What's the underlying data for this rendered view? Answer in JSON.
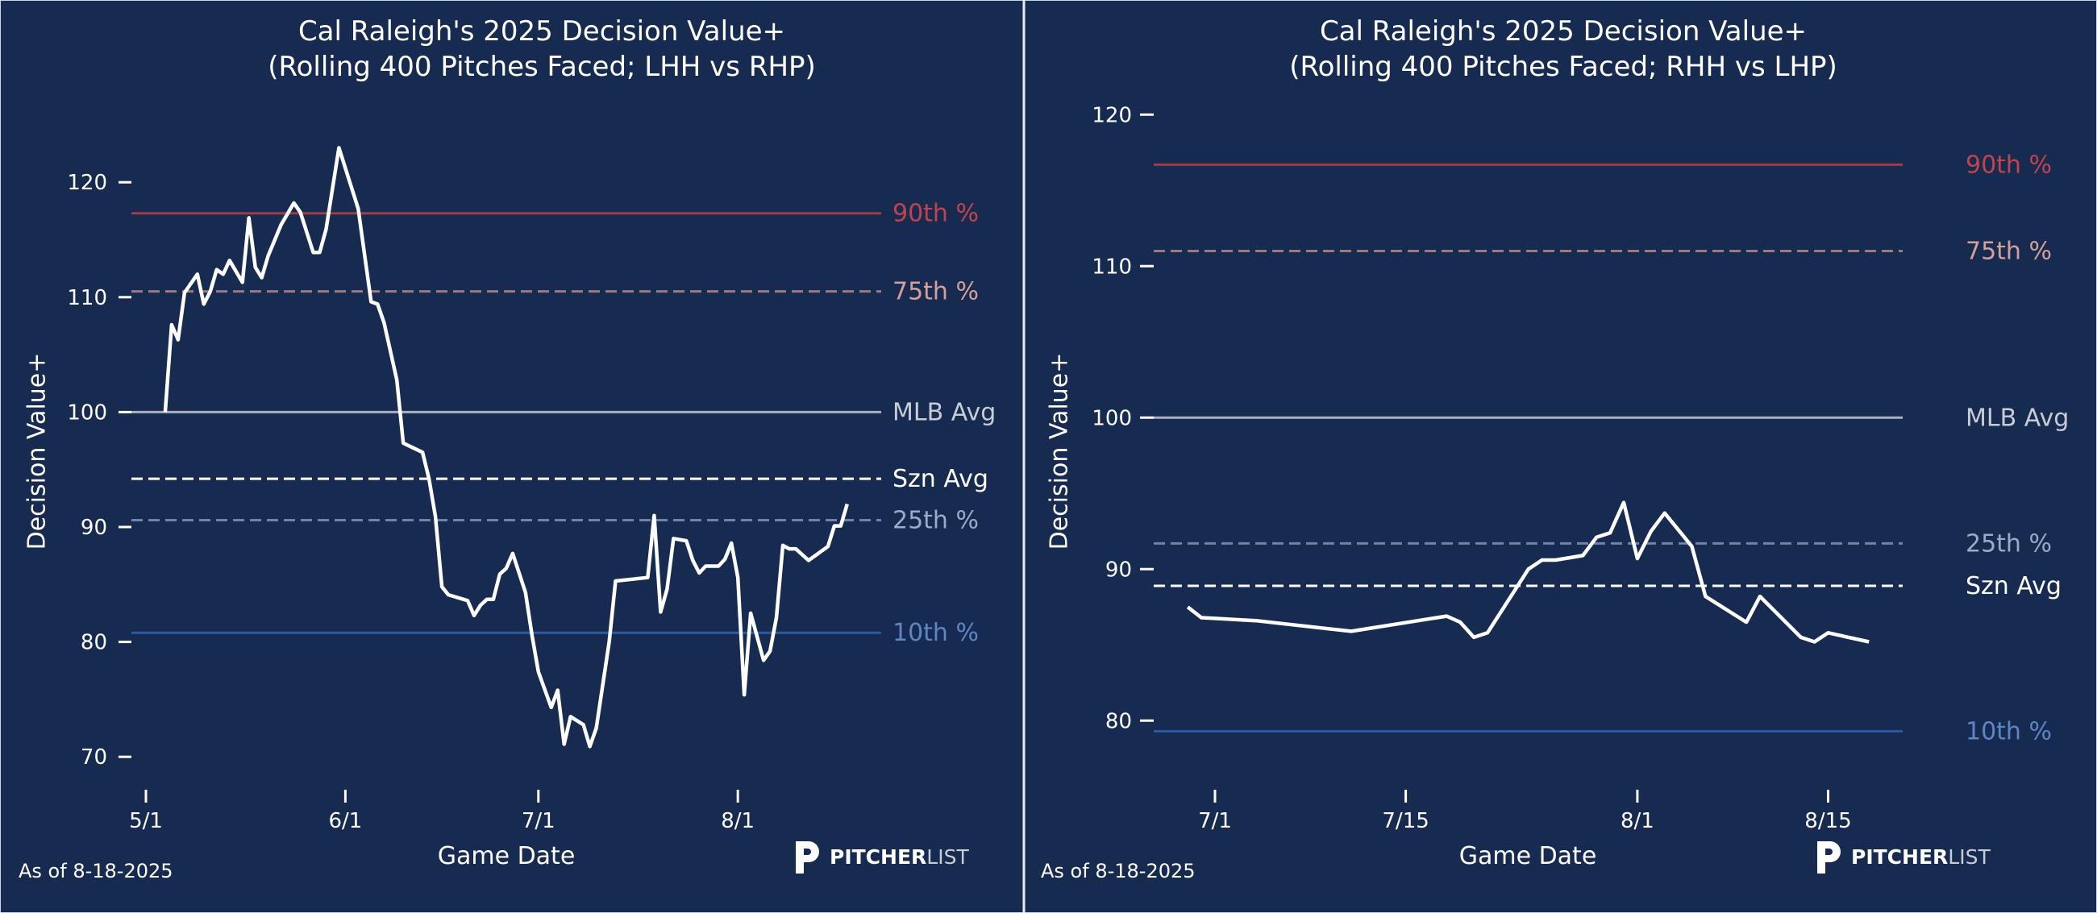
{
  "colors": {
    "background": "#172a4f",
    "line": "#ffffff",
    "p90": "#a33a46",
    "p90_label": "#c0444e",
    "p75": "#9c7a84",
    "p75_label": "#d4a09c",
    "mlb": "#aab0c0",
    "mlb_label": "#c8ccd6",
    "szn": "#ffffff",
    "p25": "#6f84a8",
    "p25_label": "#9aaccb",
    "p10": "#2c5aa0",
    "p10_label": "#5f86c4"
  },
  "footer": {
    "as_of": "As of 8-18-2025",
    "logo_bold": "PITCHER",
    "logo_light": "LIST"
  },
  "chart_data": [
    {
      "type": "line",
      "title": "Cal Raleigh's 2025 Decision Value+",
      "subtitle": "(Rolling 400 Pitches Faced; LHH vs RHP)",
      "xlabel": "Game Date",
      "ylabel": "Decision Value+",
      "xbase": "5/1",
      "xticks": [
        "5/1",
        "6/1",
        "7/1",
        "8/1"
      ],
      "yticks": [
        "70",
        "80",
        "90",
        "100",
        "110",
        "120"
      ],
      "reference_lines": [
        {
          "label": "90th %",
          "value": 117.3,
          "style": "solid",
          "key": "p90"
        },
        {
          "label": "75th %",
          "value": 110.5,
          "style": "dashed",
          "key": "p75"
        },
        {
          "label": "MLB Avg",
          "value": 100,
          "style": "solid",
          "key": "mlb"
        },
        {
          "label": "Szn Avg",
          "value": 94.2,
          "style": "dashed",
          "key": "szn"
        },
        {
          "label": "25th %",
          "value": 90.6,
          "style": "dashed",
          "key": "p25"
        },
        {
          "label": "10th %",
          "value": 80.8,
          "style": "solid",
          "key": "p10"
        }
      ],
      "x": [
        "5/4",
        "5/5",
        "5/6",
        "5/7",
        "5/9",
        "5/10",
        "5/11",
        "5/12",
        "5/13",
        "5/14",
        "5/16",
        "5/17",
        "5/18",
        "5/19",
        "5/20",
        "5/22",
        "5/24",
        "5/25",
        "5/27",
        "5/28",
        "5/29",
        "5/31",
        "6/3",
        "6/5",
        "6/6",
        "6/7",
        "6/9",
        "6/10",
        "6/13",
        "6/14",
        "6/15",
        "6/16",
        "6/17",
        "6/20",
        "6/21",
        "6/22",
        "6/23",
        "6/24",
        "6/25",
        "6/26",
        "6/27",
        "6/29",
        "6/30",
        "7/1",
        "7/3",
        "7/4",
        "7/5",
        "7/6",
        "7/8",
        "7/9",
        "7/10",
        "7/12",
        "7/13",
        "7/18",
        "7/19",
        "7/20",
        "7/21",
        "7/22",
        "7/24",
        "7/25",
        "7/26",
        "7/27",
        "7/29",
        "7/30",
        "7/31",
        "8/1",
        "8/2",
        "8/3",
        "8/5",
        "8/6",
        "8/7",
        "8/8",
        "8/9",
        "8/10",
        "8/12",
        "8/15",
        "8/16",
        "8/17",
        "8/18"
      ],
      "y": [
        100.0,
        107.6,
        106.3,
        110.4,
        112.0,
        109.4,
        110.5,
        112.4,
        112.0,
        113.2,
        111.3,
        116.9,
        112.6,
        111.7,
        113.6,
        116.3,
        118.2,
        117.4,
        113.9,
        113.9,
        115.9,
        123.0,
        117.7,
        109.6,
        109.4,
        107.8,
        102.8,
        97.3,
        96.5,
        94.2,
        90.9,
        84.8,
        84.1,
        83.6,
        82.3,
        83.2,
        83.7,
        83.7,
        85.9,
        86.4,
        87.7,
        84.3,
        80.6,
        77.4,
        74.3,
        75.8,
        71.1,
        73.5,
        72.8,
        70.9,
        72.5,
        80.0,
        85.3,
        85.6,
        91.0,
        82.6,
        84.6,
        89.0,
        88.8,
        87.1,
        86.0,
        86.6,
        86.6,
        87.2,
        88.6,
        85.6,
        75.4,
        82.5,
        78.4,
        79.2,
        82.1,
        88.4,
        88.1,
        88.1,
        87.1,
        88.3,
        90.1,
        90.1,
        92.0
      ]
    },
    {
      "type": "line",
      "title": "Cal Raleigh's 2025 Decision Value+",
      "subtitle": "(Rolling 400 Pitches Faced; RHH vs LHP)",
      "xlabel": "Game Date",
      "ylabel": "Decision Value+",
      "xbase": "7/1",
      "xticks": [
        "7/1",
        "7/15",
        "8/1",
        "8/15"
      ],
      "yticks": [
        "80",
        "90",
        "100",
        "110",
        "120"
      ],
      "reference_lines": [
        {
          "label": "90th %",
          "value": 116.7,
          "style": "solid",
          "key": "p90"
        },
        {
          "label": "75th %",
          "value": 111.0,
          "style": "dashed",
          "key": "p75"
        },
        {
          "label": "MLB Avg",
          "value": 100,
          "style": "solid",
          "key": "mlb"
        },
        {
          "label": "25th %",
          "value": 91.7,
          "style": "dashed",
          "key": "p25"
        },
        {
          "label": "Szn Avg",
          "value": 88.9,
          "style": "dashed",
          "key": "szn"
        },
        {
          "label": "10th %",
          "value": 79.3,
          "style": "solid",
          "key": "p10"
        }
      ],
      "x": [
        "6/29",
        "6/30",
        "7/4",
        "7/11",
        "7/18",
        "7/19",
        "7/20",
        "7/21",
        "7/24",
        "7/25",
        "7/26",
        "7/28",
        "7/29",
        "7/30",
        "7/31",
        "8/1",
        "8/2",
        "8/3",
        "8/5",
        "8/6",
        "8/9",
        "8/10",
        "8/13",
        "8/14",
        "8/15",
        "8/18"
      ],
      "y": [
        87.5,
        86.8,
        86.6,
        85.9,
        86.9,
        86.5,
        85.5,
        85.8,
        90.0,
        90.6,
        90.6,
        90.9,
        92.1,
        92.4,
        94.4,
        90.7,
        92.5,
        93.7,
        91.5,
        88.2,
        86.5,
        88.2,
        85.5,
        85.2,
        85.8,
        85.2
      ]
    }
  ]
}
